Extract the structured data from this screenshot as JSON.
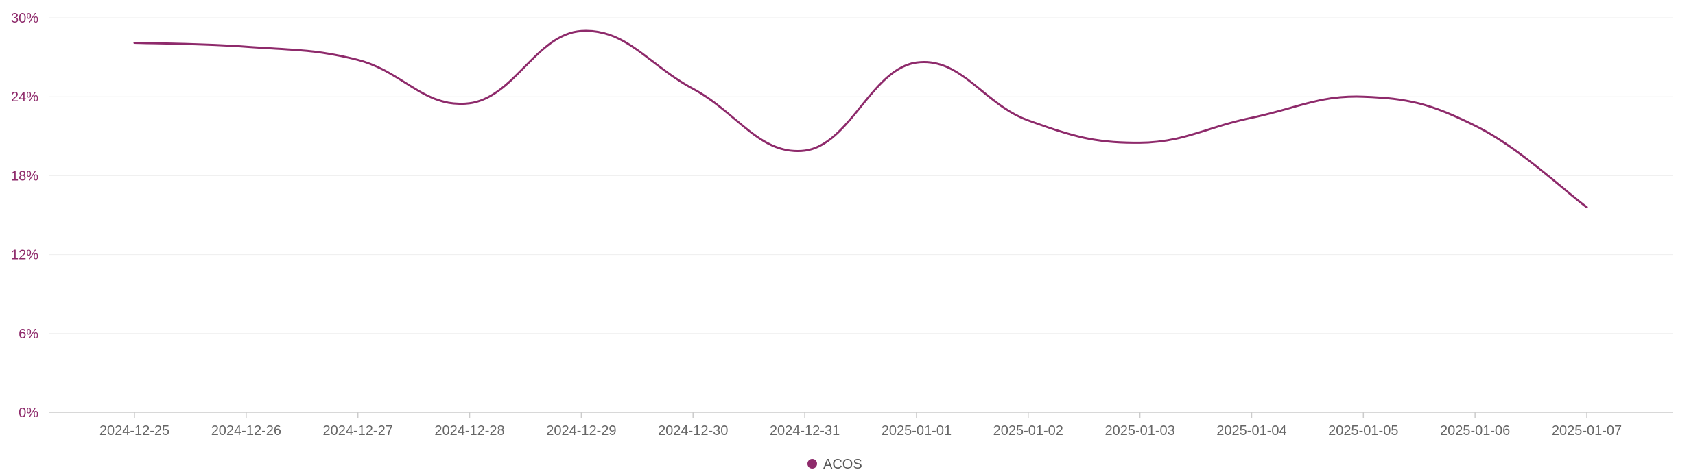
{
  "chart_data": {
    "type": "line",
    "title": "",
    "xlabel": "",
    "ylabel": "",
    "x": [
      "2024-12-25",
      "2024-12-26",
      "2024-12-27",
      "2024-12-28",
      "2024-12-29",
      "2024-12-30",
      "2024-12-31",
      "2025-01-01",
      "2025-01-02",
      "2025-01-03",
      "2025-01-04",
      "2025-01-05",
      "2025-01-06",
      "2025-01-07"
    ],
    "series": [
      {
        "name": "ACOS",
        "color": "#8e2a6b",
        "values": [
          28.1,
          27.8,
          26.8,
          23.5,
          29.0,
          24.6,
          19.9,
          26.6,
          22.2,
          20.5,
          22.4,
          24.0,
          21.8,
          15.6
        ]
      }
    ],
    "ylim": [
      0,
      30
    ],
    "yticks": [
      0,
      6,
      12,
      18,
      24,
      30
    ],
    "ytick_labels": [
      "0%",
      "6%",
      "12%",
      "18%",
      "24%",
      "30%"
    ],
    "grid": true,
    "legend_position": "bottom-center",
    "colors": {
      "axis_label": "#8e2a6b",
      "grid": "#eeeeee",
      "axis": "#cccccc"
    }
  }
}
